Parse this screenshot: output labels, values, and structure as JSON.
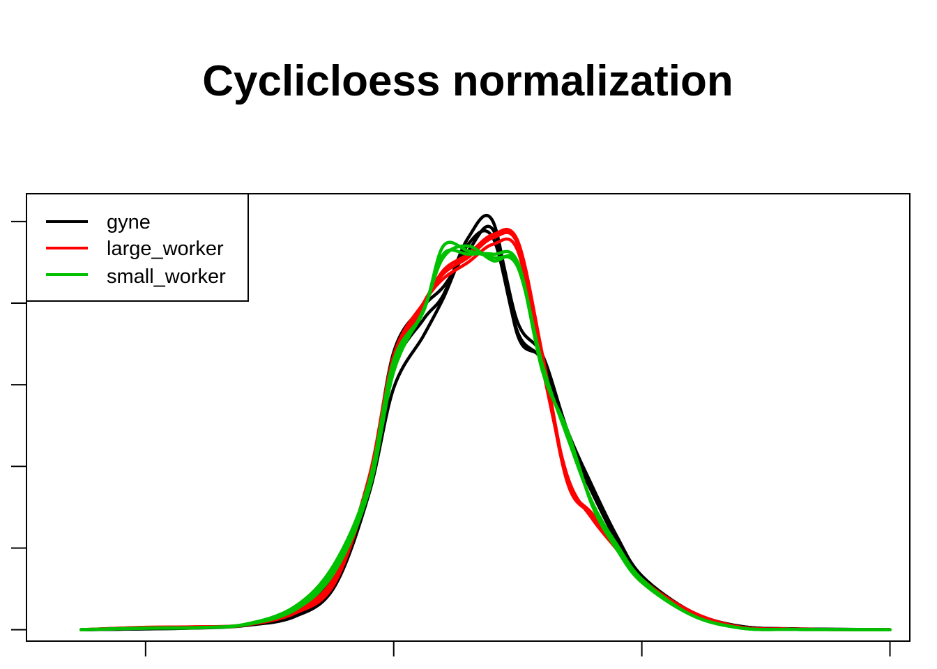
{
  "chart_data": {
    "type": "line",
    "title": "Cyclicloess normalization",
    "xlabel": "",
    "ylabel": "",
    "xlim": [
      -2.4,
      15.4
    ],
    "ylim": [
      -0.007,
      0.267
    ],
    "x_ticks": [
      0,
      5,
      10,
      15
    ],
    "y_ticks": [
      0.0,
      0.05,
      0.1,
      0.15,
      0.2,
      0.25
    ],
    "tick_labels_shown": false,
    "grid": false,
    "legend": {
      "position": "top-left",
      "entries": [
        {
          "label": "gyne",
          "color": "#000000"
        },
        {
          "label": "large_worker",
          "color": "#ff0000"
        },
        {
          "label": "small_worker",
          "color": "#00c000"
        }
      ]
    },
    "x": [
      -1.3,
      0,
      1,
      2,
      3,
      3.8,
      4.5,
      5,
      5.6,
      6,
      6.5,
      7,
      7.5,
      8,
      8.5,
      9,
      9.5,
      10,
      11,
      12,
      13,
      14,
      15
    ],
    "series": [
      {
        "group": "gyne",
        "color": "#000000",
        "values": [
          0,
          0.0005,
          0.001,
          0.0025,
          0.009,
          0.03,
          0.087,
          0.16,
          0.19,
          0.205,
          0.24,
          0.25,
          0.18,
          0.165,
          0.12,
          0.086,
          0.055,
          0.032,
          0.01,
          0.002,
          0.0005,
          0.0002,
          0
        ]
      },
      {
        "group": "gyne",
        "color": "#000000",
        "values": [
          0,
          0.0006,
          0.0012,
          0.0028,
          0.01,
          0.033,
          0.09,
          0.17,
          0.198,
          0.21,
          0.232,
          0.245,
          0.188,
          0.168,
          0.122,
          0.088,
          0.057,
          0.033,
          0.011,
          0.002,
          0.0006,
          0.0002,
          0
        ]
      },
      {
        "group": "gyne",
        "color": "#000000",
        "values": [
          0,
          0.0005,
          0.0011,
          0.0026,
          0.008,
          0.026,
          0.083,
          0.148,
          0.18,
          0.203,
          0.236,
          0.24,
          0.182,
          0.164,
          0.118,
          0.084,
          0.054,
          0.031,
          0.01,
          0.002,
          0.0005,
          0.0002,
          0
        ]
      },
      {
        "group": "large_worker",
        "color": "#ff0000",
        "values": [
          0,
          0.0015,
          0.0018,
          0.003,
          0.011,
          0.03,
          0.09,
          0.163,
          0.2,
          0.218,
          0.228,
          0.24,
          0.236,
          0.165,
          0.09,
          0.07,
          0.05,
          0.03,
          0.01,
          0.0015,
          0.0004,
          0.0001,
          0
        ]
      },
      {
        "group": "large_worker",
        "color": "#ff0000",
        "values": [
          0,
          0.0012,
          0.0016,
          0.0028,
          0.012,
          0.032,
          0.093,
          0.168,
          0.2,
          0.215,
          0.225,
          0.236,
          0.232,
          0.16,
          0.094,
          0.068,
          0.049,
          0.029,
          0.01,
          0.0015,
          0.0004,
          0.0001,
          0
        ]
      },
      {
        "group": "large_worker",
        "color": "#ff0000",
        "values": [
          0,
          0.0014,
          0.0017,
          0.0029,
          0.01,
          0.028,
          0.088,
          0.16,
          0.198,
          0.22,
          0.23,
          0.242,
          0.238,
          0.168,
          0.092,
          0.071,
          0.051,
          0.031,
          0.011,
          0.0015,
          0.0004,
          0.0001,
          0
        ]
      },
      {
        "group": "small_worker",
        "color": "#00c000",
        "values": [
          0,
          0.001,
          0.0012,
          0.0032,
          0.013,
          0.037,
          0.087,
          0.16,
          0.195,
          0.23,
          0.23,
          0.23,
          0.225,
          0.16,
          0.12,
          0.077,
          0.05,
          0.03,
          0.009,
          0.001,
          0.0002,
          0.0001,
          0
        ]
      },
      {
        "group": "small_worker",
        "color": "#00c000",
        "values": [
          0,
          0.001,
          0.0013,
          0.0033,
          0.014,
          0.04,
          0.09,
          0.165,
          0.195,
          0.235,
          0.232,
          0.228,
          0.222,
          0.162,
          0.118,
          0.078,
          0.052,
          0.031,
          0.009,
          0.001,
          0.0002,
          0.0001,
          0
        ]
      },
      {
        "group": "small_worker",
        "color": "#00c000",
        "values": [
          0,
          0.0009,
          0.0011,
          0.003,
          0.012,
          0.035,
          0.085,
          0.158,
          0.196,
          0.228,
          0.235,
          0.226,
          0.224,
          0.158,
          0.122,
          0.076,
          0.049,
          0.029,
          0.009,
          0.001,
          0.0002,
          0.0001,
          0
        ]
      }
    ]
  }
}
